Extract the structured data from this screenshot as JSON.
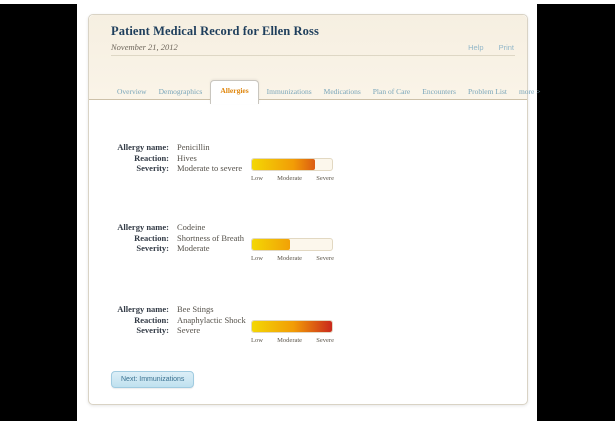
{
  "header": {
    "title": "Patient Medical Record for Ellen Ross",
    "date": "November 21, 2012",
    "help_link": "Help",
    "print_link": "Print"
  },
  "tabs": [
    {
      "label": "Overview",
      "active": false
    },
    {
      "label": "Demographics",
      "active": false
    },
    {
      "label": "Allergies",
      "active": true
    },
    {
      "label": "Immunizations",
      "active": false
    },
    {
      "label": "Medications",
      "active": false
    },
    {
      "label": "Plan of Care",
      "active": false
    },
    {
      "label": "Encounters",
      "active": false
    },
    {
      "label": "Problem List",
      "active": false
    },
    {
      "label": "more >",
      "active": false
    }
  ],
  "field_labels": {
    "name": "Allergy name:",
    "reaction": "Reaction:",
    "severity": "Severity:"
  },
  "severity_scale": [
    "Low",
    "Moderate",
    "Severe"
  ],
  "allergies": [
    {
      "name": "Penicillin",
      "reaction": "Hives",
      "severity": "Moderate to severe",
      "severity_fill_pct": 79
    },
    {
      "name": "Codeine",
      "reaction": "Shortness of Breath",
      "severity": "Moderate",
      "severity_fill_pct": 48
    },
    {
      "name": "Bee Stings",
      "reaction": "Anaphylactic Shock",
      "severity": "Severe",
      "severity_fill_pct": 100
    }
  ],
  "next_button_label": "Next: Immunizations",
  "colors": {
    "title_text": "#1e3e5c",
    "active_tab_text": "#e0870e",
    "inactive_tab_text": "#7aa6ba",
    "severity_gradient": [
      "#f3d705",
      "#f29c06",
      "#c9281c"
    ],
    "severity_track": "#fcf7ec",
    "button_text": "#3a7190"
  }
}
